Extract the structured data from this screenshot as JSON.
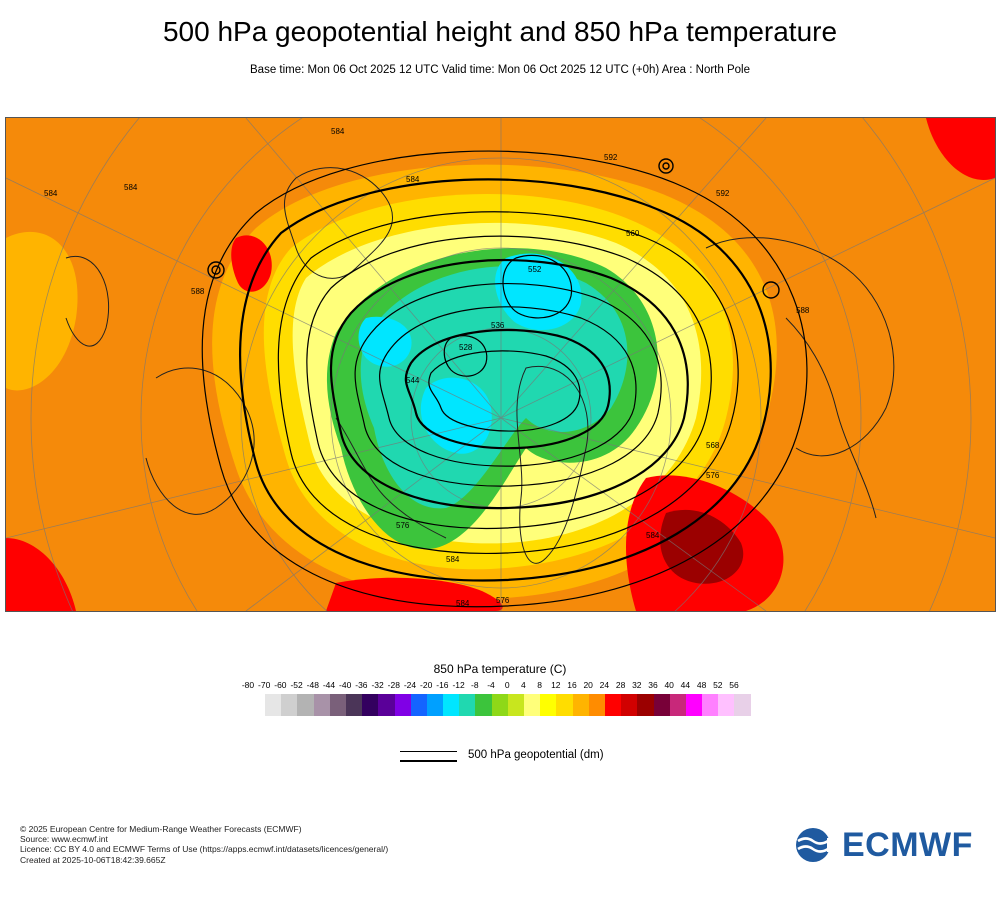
{
  "header": {
    "title": "500 hPa geopotential height and 850 hPa temperature",
    "subtitle": "Base time: Mon 06 Oct 2025 12 UTC Valid time: Mon 06 Oct 2025 12 UTC (+0h) Area : North Pole"
  },
  "map": {
    "projection": "polar stereographic",
    "area": "North Pole",
    "contour_labels": [
      "584",
      "584",
      "584",
      "584",
      "588",
      "592",
      "576",
      "576",
      "552",
      "528",
      "536",
      "544",
      "560",
      "568",
      "592",
      "588",
      "584",
      "584",
      "576",
      "584"
    ]
  },
  "temperature_legend": {
    "title": "850 hPa temperature (C)",
    "ticks": [
      "-80",
      "-70",
      "-60",
      "-52",
      "-48",
      "-44",
      "-40",
      "-36",
      "-32",
      "-28",
      "-24",
      "-20",
      "-16",
      "-12",
      "-8",
      "-4",
      "0",
      "4",
      "8",
      "12",
      "16",
      "20",
      "24",
      "28",
      "32",
      "36",
      "40",
      "44",
      "48",
      "52",
      "56"
    ],
    "colors": [
      "#e6e6e6",
      "#cfcfcf",
      "#b3b3b3",
      "#a892a8",
      "#7a607a",
      "#4b3558",
      "#33005f",
      "#5a0099",
      "#8000e6",
      "#1464ff",
      "#00a0ff",
      "#00e6ff",
      "#20d8b0",
      "#3cc43c",
      "#8ed818",
      "#c8e61e",
      "#ffff7a",
      "#ffff00",
      "#ffdd00",
      "#ffb400",
      "#ff8c00",
      "#ff0000",
      "#d10000",
      "#9b0000",
      "#780038",
      "#c8287a",
      "#ff00ff",
      "#ff80ff",
      "#ffc0ff",
      "#e8d0e8"
    ]
  },
  "geopotential_legend": {
    "label": "500 hPa geopotential (dm)"
  },
  "footer": {
    "line1": "© 2025 European Centre for Medium-Range Weather Forecasts (ECMWF)",
    "line2": "Source: www.ecmwf.int",
    "line3": "Licence: CC BY 4.0 and ECMWF Terms of Use (https://apps.ecmwf.int/datasets/licences/general/)",
    "line4": "Created at 2025-10-06T18:42:39.665Z"
  },
  "logo": {
    "text": "ECMWF",
    "color": "#1f5aa0"
  }
}
